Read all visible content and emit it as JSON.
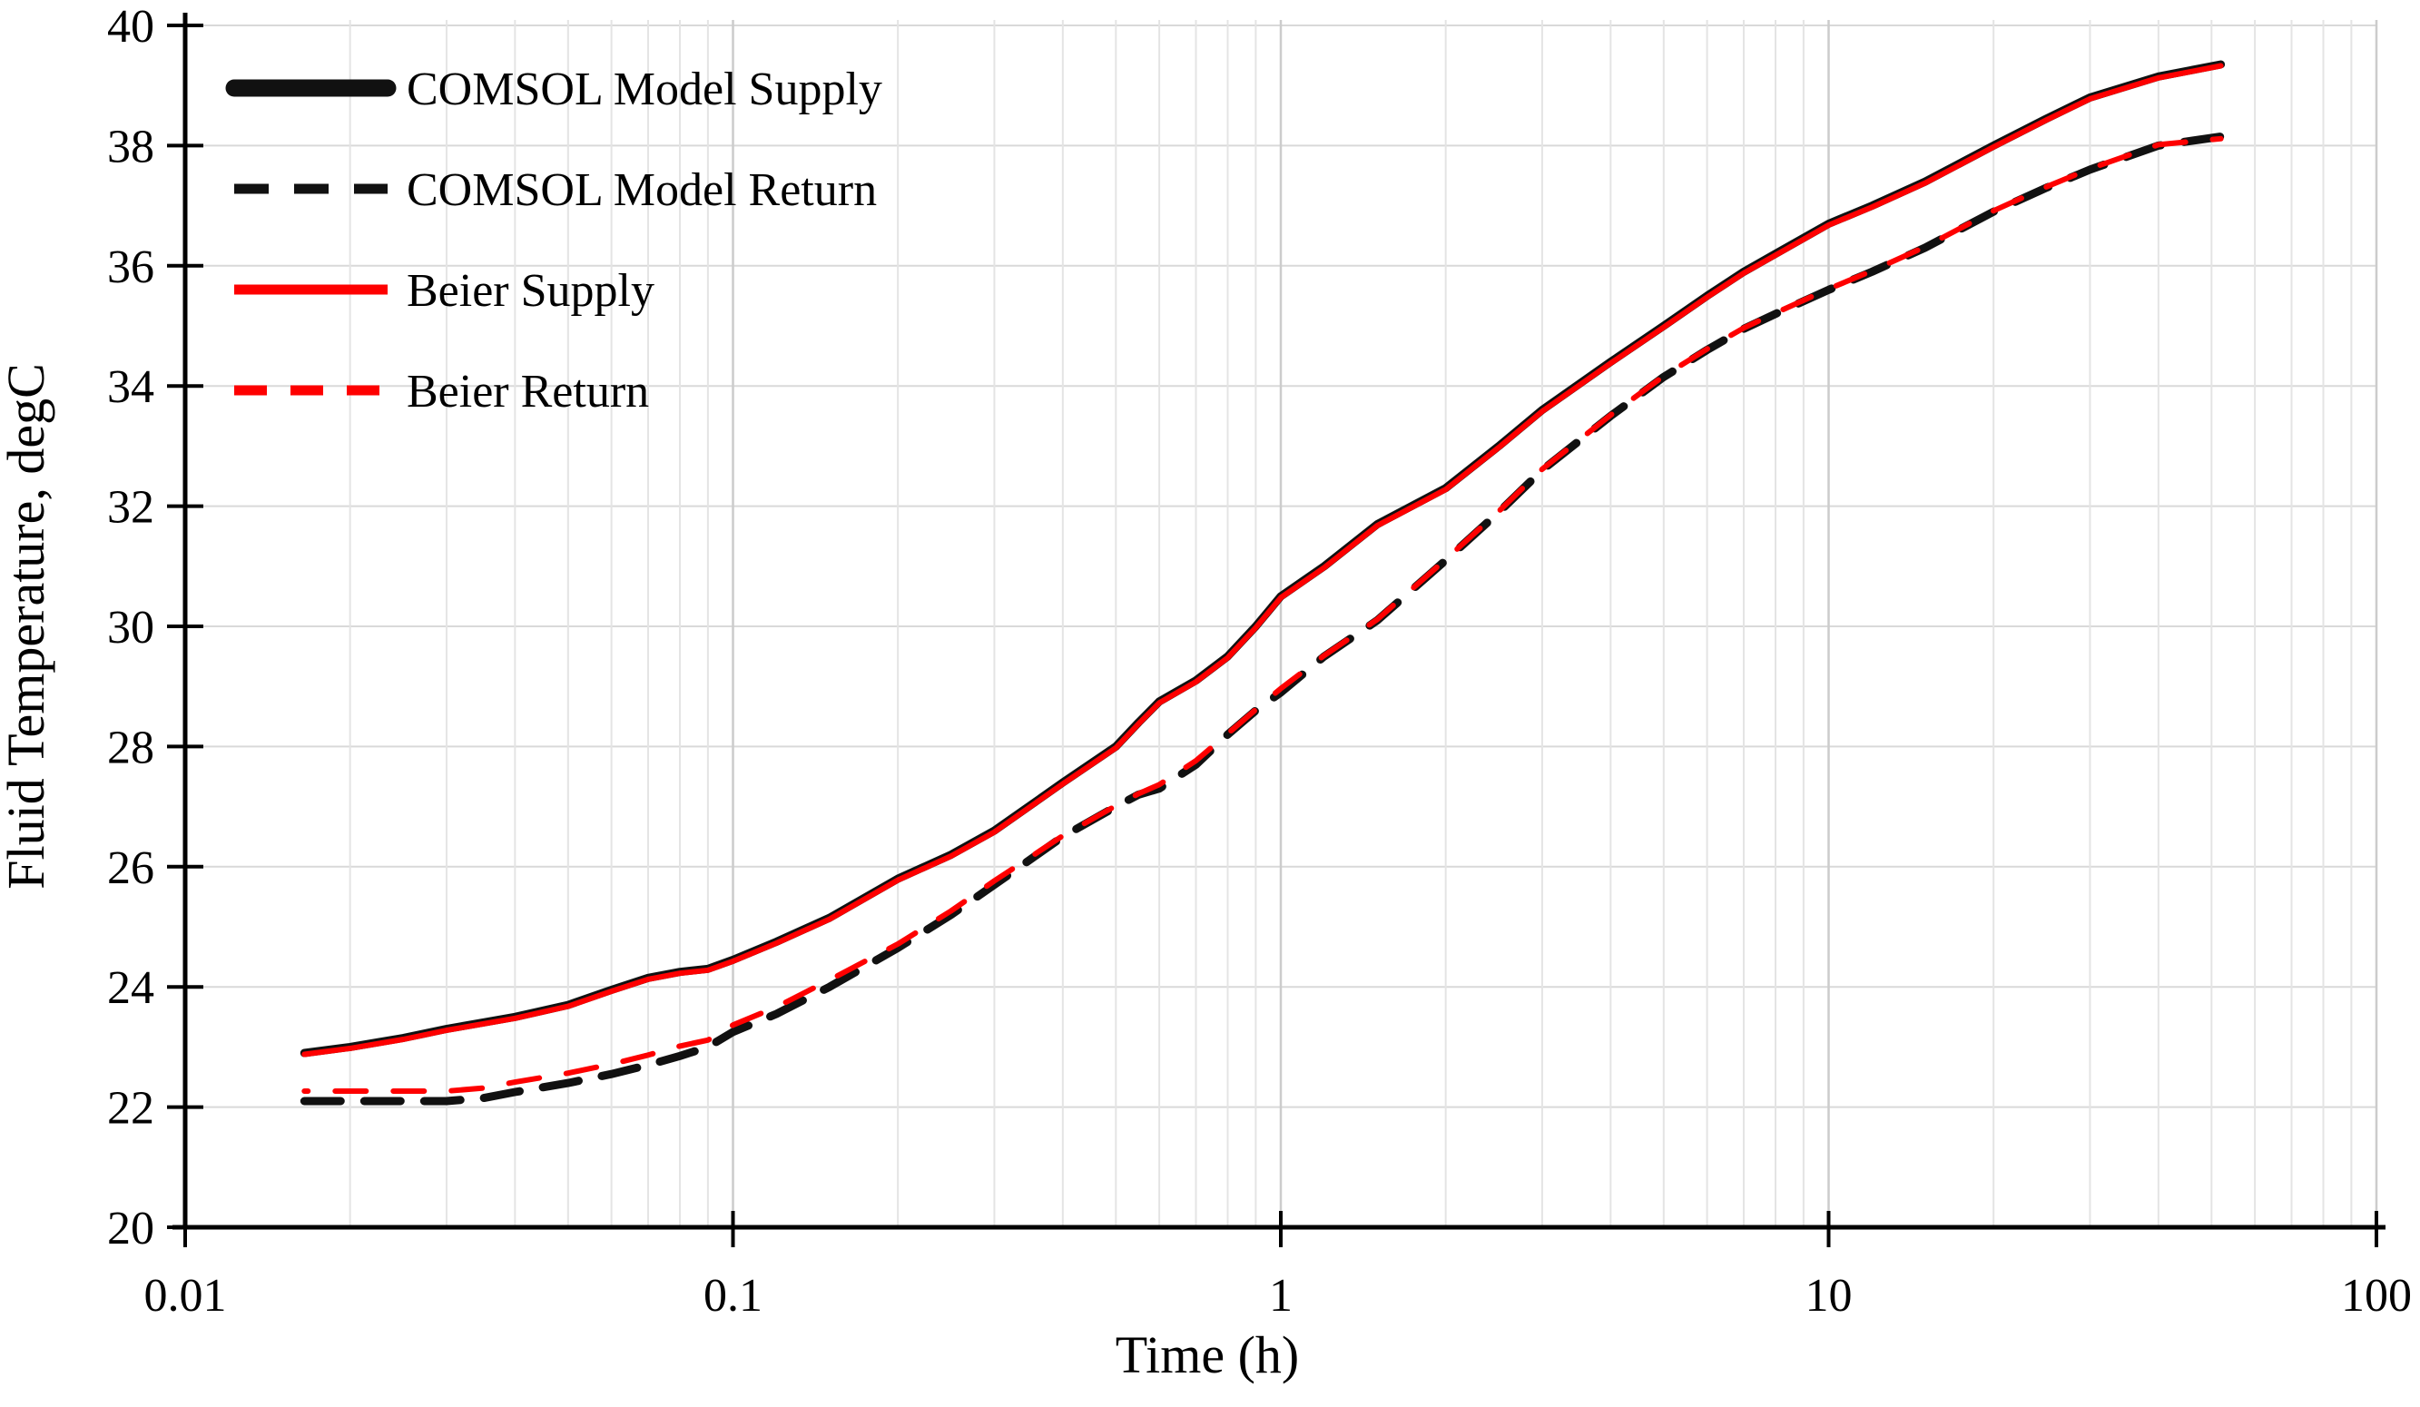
{
  "chart_data": {
    "type": "line",
    "title": "",
    "xlabel": "Time (h)",
    "ylabel": "Fluid Temperature, degC",
    "x_scale": "log",
    "xlim": [
      0.01,
      100
    ],
    "ylim": [
      20,
      40
    ],
    "x_ticks": [
      0.01,
      0.1,
      1,
      10,
      100
    ],
    "x_tick_labels": [
      "0.01",
      "0.1",
      "1",
      "10",
      "100"
    ],
    "y_ticks": [
      20,
      22,
      24,
      26,
      28,
      30,
      32,
      34,
      36,
      38,
      40
    ],
    "grid": "on",
    "legend_position": "top-left",
    "colors": {
      "black_series": "#111111",
      "red_series": "#fe0000",
      "axis": "#000000",
      "grid_minor": "#e4e4e4",
      "grid_major": "#cccccc",
      "background": "#ffffff"
    },
    "series": [
      {
        "name": "COMSOL Model Supply",
        "color": "#111111",
        "style": "solid",
        "width": 9,
        "points": [
          [
            0.0165,
            22.9
          ],
          [
            0.02,
            23.0
          ],
          [
            0.025,
            23.15
          ],
          [
            0.03,
            23.3
          ],
          [
            0.04,
            23.5
          ],
          [
            0.05,
            23.7
          ],
          [
            0.06,
            23.95
          ],
          [
            0.07,
            24.15
          ],
          [
            0.08,
            24.25
          ],
          [
            0.09,
            24.3
          ],
          [
            0.1,
            24.45
          ],
          [
            0.12,
            24.75
          ],
          [
            0.15,
            25.15
          ],
          [
            0.2,
            25.8
          ],
          [
            0.25,
            26.2
          ],
          [
            0.3,
            26.6
          ],
          [
            0.4,
            27.4
          ],
          [
            0.5,
            28.0
          ],
          [
            0.55,
            28.4
          ],
          [
            0.6,
            28.75
          ],
          [
            0.7,
            29.1
          ],
          [
            0.8,
            29.5
          ],
          [
            0.9,
            30.0
          ],
          [
            1.0,
            30.5
          ],
          [
            1.2,
            31.0
          ],
          [
            1.5,
            31.7
          ],
          [
            2.0,
            32.3
          ],
          [
            2.5,
            33.0
          ],
          [
            3.0,
            33.6
          ],
          [
            4.0,
            34.4
          ],
          [
            5.0,
            35.0
          ],
          [
            6.0,
            35.5
          ],
          [
            7.0,
            35.9
          ],
          [
            8.0,
            36.2
          ],
          [
            10,
            36.7
          ],
          [
            12,
            37.0
          ],
          [
            15,
            37.4
          ],
          [
            20,
            38.0
          ],
          [
            25,
            38.45
          ],
          [
            30,
            38.8
          ],
          [
            40,
            39.15
          ],
          [
            52,
            39.35
          ]
        ]
      },
      {
        "name": "COMSOL Model Return",
        "color": "#111111",
        "style": "dashed",
        "width": 9,
        "points": [
          [
            0.0165,
            22.1
          ],
          [
            0.02,
            22.1
          ],
          [
            0.025,
            22.1
          ],
          [
            0.03,
            22.1
          ],
          [
            0.035,
            22.15
          ],
          [
            0.04,
            22.25
          ],
          [
            0.05,
            22.4
          ],
          [
            0.06,
            22.55
          ],
          [
            0.07,
            22.7
          ],
          [
            0.08,
            22.85
          ],
          [
            0.09,
            23.0
          ],
          [
            0.1,
            23.25
          ],
          [
            0.12,
            23.55
          ],
          [
            0.15,
            24.0
          ],
          [
            0.2,
            24.65
          ],
          [
            0.25,
            25.2
          ],
          [
            0.3,
            25.7
          ],
          [
            0.4,
            26.5
          ],
          [
            0.5,
            27.0
          ],
          [
            0.55,
            27.2
          ],
          [
            0.6,
            27.3
          ],
          [
            0.7,
            27.7
          ],
          [
            0.8,
            28.2
          ],
          [
            0.9,
            28.6
          ],
          [
            1.0,
            28.9
          ],
          [
            1.2,
            29.5
          ],
          [
            1.5,
            30.1
          ],
          [
            2.0,
            31.1
          ],
          [
            2.5,
            31.9
          ],
          [
            3.0,
            32.6
          ],
          [
            4.0,
            33.5
          ],
          [
            5.0,
            34.15
          ],
          [
            6.0,
            34.6
          ],
          [
            7.0,
            34.95
          ],
          [
            8.0,
            35.2
          ],
          [
            10,
            35.6
          ],
          [
            12,
            35.9
          ],
          [
            15,
            36.3
          ],
          [
            20,
            36.9
          ],
          [
            25,
            37.3
          ],
          [
            30,
            37.6
          ],
          [
            40,
            38.0
          ],
          [
            52,
            38.15
          ]
        ]
      },
      {
        "name": "Beier Supply",
        "color": "#fe0000",
        "style": "solid",
        "width": 6,
        "points": [
          [
            0.0165,
            22.9
          ],
          [
            0.02,
            23.0
          ],
          [
            0.025,
            23.15
          ],
          [
            0.03,
            23.3
          ],
          [
            0.04,
            23.5
          ],
          [
            0.05,
            23.7
          ],
          [
            0.06,
            23.95
          ],
          [
            0.07,
            24.15
          ],
          [
            0.08,
            24.25
          ],
          [
            0.09,
            24.3
          ],
          [
            0.1,
            24.45
          ],
          [
            0.12,
            24.75
          ],
          [
            0.15,
            25.15
          ],
          [
            0.2,
            25.8
          ],
          [
            0.25,
            26.2
          ],
          [
            0.3,
            26.6
          ],
          [
            0.4,
            27.4
          ],
          [
            0.5,
            28.0
          ],
          [
            0.55,
            28.4
          ],
          [
            0.6,
            28.75
          ],
          [
            0.7,
            29.1
          ],
          [
            0.8,
            29.5
          ],
          [
            0.9,
            30.0
          ],
          [
            1.0,
            30.5
          ],
          [
            1.2,
            31.0
          ],
          [
            1.5,
            31.7
          ],
          [
            2.0,
            32.3
          ],
          [
            2.5,
            33.0
          ],
          [
            3.0,
            33.6
          ],
          [
            4.0,
            34.4
          ],
          [
            5.0,
            35.0
          ],
          [
            6.0,
            35.5
          ],
          [
            7.0,
            35.9
          ],
          [
            8.0,
            36.2
          ],
          [
            10,
            36.7
          ],
          [
            12,
            37.0
          ],
          [
            15,
            37.4
          ],
          [
            20,
            38.0
          ],
          [
            25,
            38.45
          ],
          [
            30,
            38.8
          ],
          [
            40,
            39.15
          ],
          [
            52,
            39.35
          ]
        ]
      },
      {
        "name": "Beier Return",
        "color": "#fe0000",
        "style": "dashed",
        "width": 6,
        "points": [
          [
            0.0165,
            22.25
          ],
          [
            0.02,
            22.25
          ],
          [
            0.025,
            22.25
          ],
          [
            0.03,
            22.25
          ],
          [
            0.035,
            22.3
          ],
          [
            0.04,
            22.4
          ],
          [
            0.05,
            22.55
          ],
          [
            0.06,
            22.7
          ],
          [
            0.07,
            22.85
          ],
          [
            0.08,
            23.0
          ],
          [
            0.09,
            23.1
          ],
          [
            0.1,
            23.35
          ],
          [
            0.12,
            23.65
          ],
          [
            0.15,
            24.1
          ],
          [
            0.2,
            24.7
          ],
          [
            0.25,
            25.25
          ],
          [
            0.3,
            25.75
          ],
          [
            0.4,
            26.5
          ],
          [
            0.5,
            27.0
          ],
          [
            0.55,
            27.2
          ],
          [
            0.6,
            27.35
          ],
          [
            0.7,
            27.75
          ],
          [
            0.8,
            28.2
          ],
          [
            0.9,
            28.6
          ],
          [
            1.0,
            28.95
          ],
          [
            1.2,
            29.5
          ],
          [
            1.5,
            30.1
          ],
          [
            2.0,
            31.1
          ],
          [
            2.5,
            31.9
          ],
          [
            3.0,
            32.6
          ],
          [
            4.0,
            33.5
          ],
          [
            5.0,
            34.15
          ],
          [
            6.0,
            34.6
          ],
          [
            7.0,
            34.95
          ],
          [
            8.0,
            35.2
          ],
          [
            10,
            35.6
          ],
          [
            12,
            35.9
          ],
          [
            15,
            36.3
          ],
          [
            20,
            36.9
          ],
          [
            25,
            37.3
          ],
          [
            30,
            37.6
          ],
          [
            40,
            38.0
          ],
          [
            52,
            38.1
          ]
        ]
      }
    ]
  }
}
